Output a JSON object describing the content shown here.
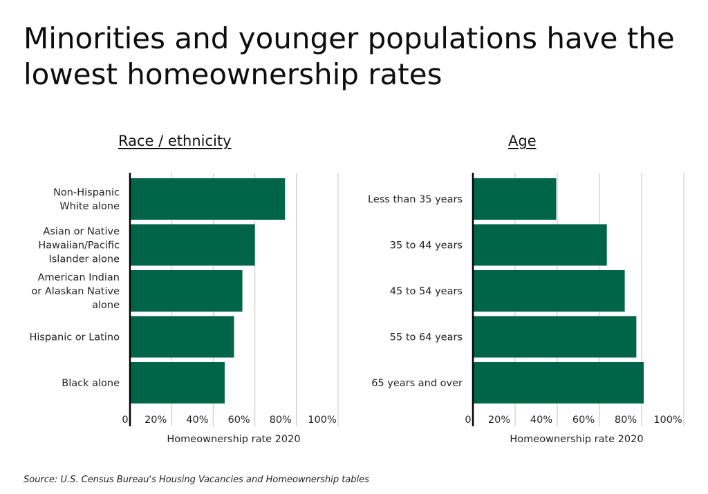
{
  "title": "Minorities and younger populations have the lowest homeownership rates",
  "source": "Source:  U.S. Census Bureau's Housing Vacancies and Homeownership tables",
  "colors": {
    "bar": "#006548",
    "grid": "#cccccc",
    "axis": "#000000"
  },
  "chart_data": [
    {
      "type": "bar",
      "orientation": "horizontal",
      "title": "Race / ethnicity",
      "xlabel": "Homeownership rate 2020",
      "xlim": [
        0,
        100
      ],
      "ticks": [
        "0",
        "20%",
        "40%",
        "60%",
        "80%",
        "100%"
      ],
      "categories": [
        [
          "Non-Hispanic",
          "White alone"
        ],
        [
          "Asian or Native",
          "Hawaiian/Pacific",
          "Islander alone"
        ],
        [
          "American Indian",
          "or Alaskan Native",
          "alone"
        ],
        [
          "Hispanic or Latino"
        ],
        [
          "Black alone"
        ]
      ],
      "values": [
        74.5,
        60,
        54,
        50,
        45.5
      ],
      "grid": true
    },
    {
      "type": "bar",
      "orientation": "horizontal",
      "title": "Age",
      "xlabel": "Homeownership rate 2020",
      "xlim": [
        0,
        100
      ],
      "ticks": [
        "0",
        "20%",
        "40%",
        "60%",
        "80%",
        "100%"
      ],
      "categories": [
        [
          "Less than 35 years"
        ],
        [
          "35 to 44 years"
        ],
        [
          "45 to 54 years"
        ],
        [
          "55 to 64 years"
        ],
        [
          "65 years and over"
        ]
      ],
      "values": [
        39.5,
        63.5,
        72,
        77.5,
        81
      ],
      "grid": true
    }
  ]
}
